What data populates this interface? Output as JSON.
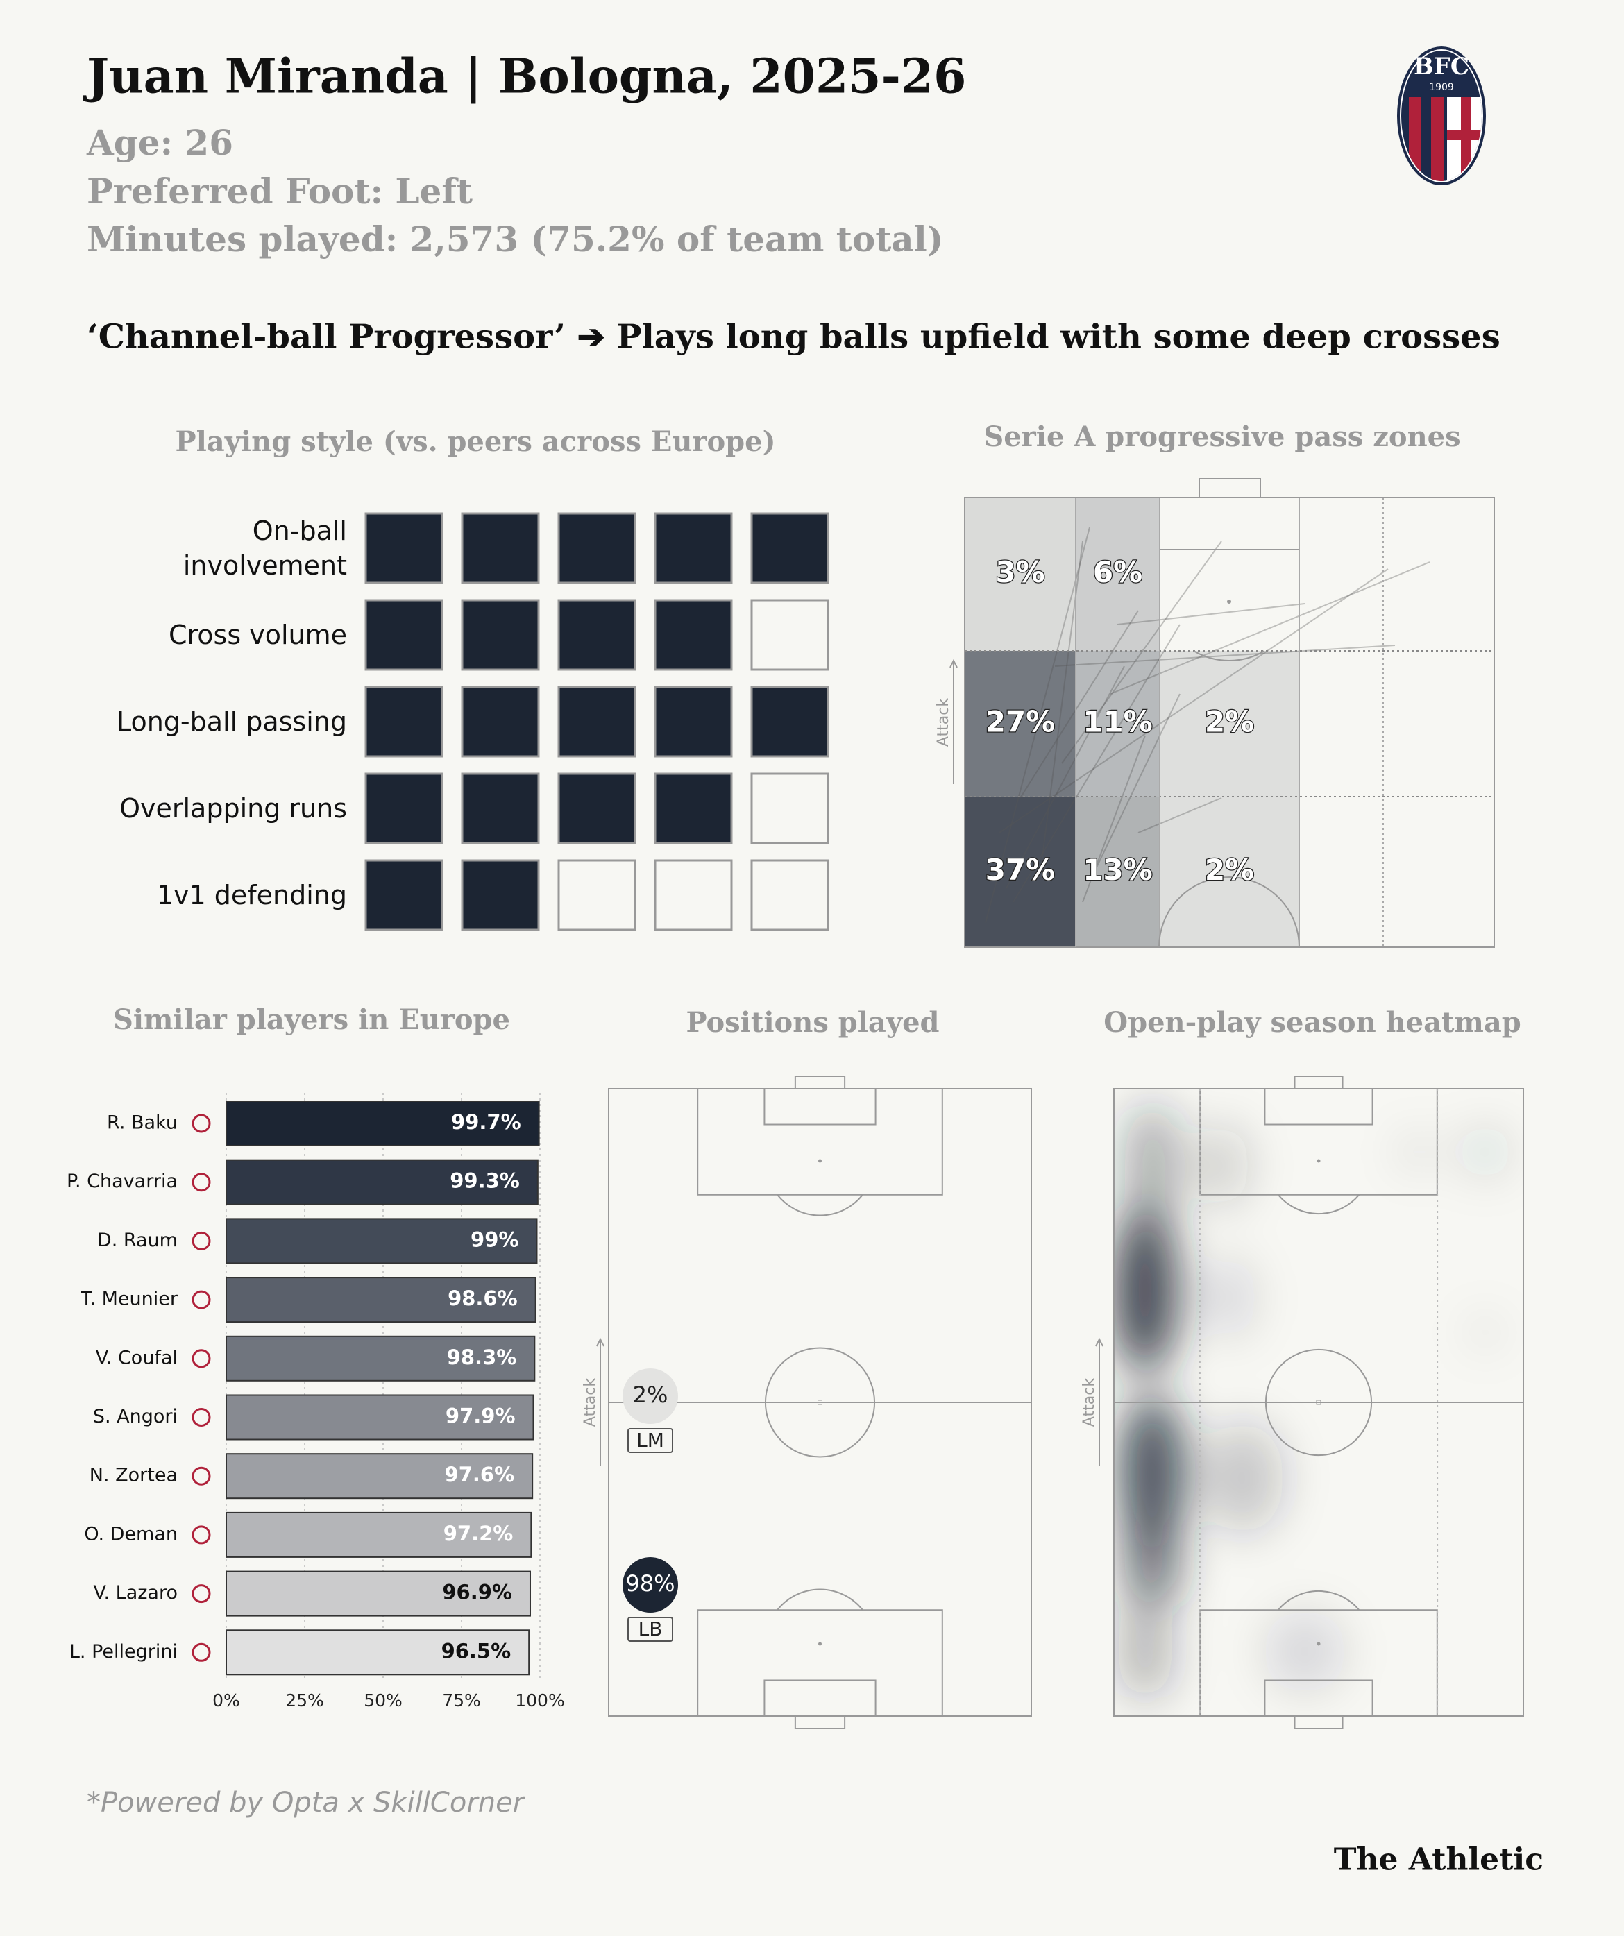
{
  "header": {
    "title": "Juan Miranda | Bologna, 2025-26",
    "age": "Age: 26",
    "foot": "Preferred Foot: Left",
    "minutes": "Minutes played: 2,573 (75.2% of team total)",
    "logo_text": "BFC",
    "logo_year": "1909",
    "archetype": "‘Channel-ball Progressor’ ➔ Plays long balls upfield with some deep crosses"
  },
  "chart_data": [
    {
      "type": "rating-grid",
      "title": "Playing style (vs. peers across Europe)",
      "categories": [
        "On-ball involvement",
        "Cross volume",
        "Long-ball passing",
        "Overlapping runs",
        "1v1 defending"
      ],
      "values": [
        5,
        4,
        5,
        4,
        2
      ],
      "xlim": [
        0,
        5
      ],
      "color": "#1c2533"
    },
    {
      "type": "zones",
      "title": "Serie A progressive pass zones",
      "axis_label": "Attack",
      "values": [
        [
          3,
          6,
          null
        ],
        [
          27,
          11,
          2
        ],
        [
          37,
          13,
          2
        ]
      ],
      "value_labels": [
        [
          "3%",
          "6%",
          null
        ],
        [
          "27%",
          "11%",
          "2%"
        ],
        [
          "37%",
          "13%",
          "2%"
        ]
      ],
      "color": "#2b3340"
    },
    {
      "type": "bar",
      "orientation": "horizontal",
      "title": "Similar players in Europe",
      "categories": [
        "R. Baku",
        "P. Chavarria",
        "D. Raum",
        "T. Meunier",
        "V. Coufal",
        "S. Angori",
        "N. Zortea",
        "O. Deman",
        "V. Lazaro",
        "L. Pellegrini"
      ],
      "values": [
        99.7,
        99.3,
        99,
        98.6,
        98.3,
        97.9,
        97.6,
        97.2,
        96.9,
        96.5
      ],
      "value_labels": [
        "99.7%",
        "99.3%",
        "99%",
        "98.6%",
        "98.3%",
        "97.9%",
        "97.6%",
        "97.2%",
        "96.9%",
        "96.5%"
      ],
      "colors": [
        "#1c2533",
        "#2f3746",
        "#434b58",
        "#5a606b",
        "#70757e",
        "#878a91",
        "#9d9fa4",
        "#b4b5b8",
        "#cbcbcc",
        "#e0e0e0"
      ],
      "xlim": [
        0,
        100
      ],
      "xticks": [
        {
          "value": 0,
          "label": "0%"
        },
        {
          "value": 25,
          "label": "25%"
        },
        {
          "value": 50,
          "label": "50%"
        },
        {
          "value": 75,
          "label": "75%"
        },
        {
          "value": 100,
          "label": "100%"
        }
      ],
      "grid": true
    },
    {
      "type": "positions",
      "title": "Positions played",
      "axis_label": "Attack",
      "categories": [
        "LM",
        "LB"
      ],
      "values": [
        2,
        98
      ],
      "value_labels": [
        "2%",
        "98%"
      ],
      "colors": [
        "#e3e3e1",
        "#1c2533"
      ]
    },
    {
      "type": "heatmap",
      "title": "Open-play season heatmap",
      "axis_label": "Attack"
    }
  ],
  "footer": {
    "source": "*Powered by Opta x SkillCorner",
    "brand": "The Athletic"
  }
}
